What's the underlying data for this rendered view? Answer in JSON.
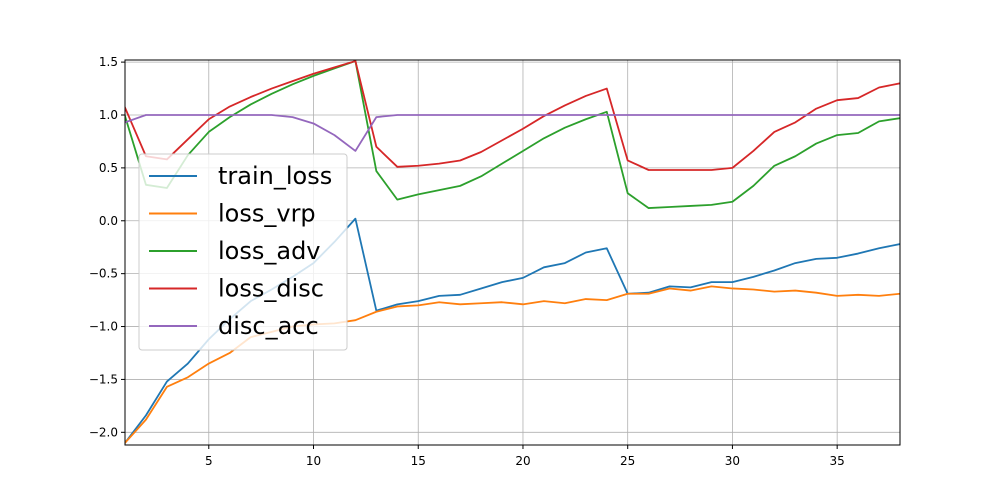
{
  "chart_data": {
    "type": "line",
    "title": "",
    "xlabel": "",
    "ylabel": "",
    "xlim": [
      1,
      38
    ],
    "ylim": [
      -2.12,
      1.52
    ],
    "grid": true,
    "legend_position": "center-left",
    "x_ticks": [
      5,
      10,
      15,
      20,
      25,
      30,
      35
    ],
    "x_tick_labels": [
      "5",
      "10",
      "15",
      "20",
      "25",
      "30",
      "35"
    ],
    "y_ticks": [
      -2.0,
      -1.5,
      -1.0,
      -0.5,
      0.0,
      0.5,
      1.0,
      1.5
    ],
    "y_tick_labels": [
      "−2.0",
      "−1.5",
      "−1.0",
      "−0.5",
      "0.0",
      "0.5",
      "1.0",
      "1.5"
    ],
    "x": [
      1,
      2,
      3,
      4,
      5,
      6,
      7,
      8,
      9,
      10,
      11,
      12,
      13,
      14,
      15,
      16,
      17,
      18,
      19,
      20,
      21,
      22,
      23,
      24,
      25,
      26,
      27,
      28,
      29,
      30,
      31,
      32,
      33,
      34,
      35,
      36,
      37,
      38
    ],
    "series": [
      {
        "name": "train_loss",
        "color": "#1f77b4",
        "values": [
          -2.1,
          -1.84,
          -1.52,
          -1.35,
          -1.12,
          -0.93,
          -0.76,
          -0.65,
          -0.53,
          -0.4,
          -0.2,
          0.02,
          -0.85,
          -0.79,
          -0.76,
          -0.71,
          -0.7,
          -0.64,
          -0.58,
          -0.54,
          -0.44,
          -0.4,
          -0.3,
          -0.26,
          -0.69,
          -0.68,
          -0.62,
          -0.63,
          -0.58,
          -0.58,
          -0.53,
          -0.47,
          -0.4,
          -0.36,
          -0.35,
          -0.31,
          -0.26,
          -0.22
        ]
      },
      {
        "name": "loss_vrp",
        "color": "#ff7f0e",
        "values": [
          -2.1,
          -1.88,
          -1.57,
          -1.48,
          -1.35,
          -1.25,
          -1.1,
          -1.05,
          -1.0,
          -0.98,
          -0.97,
          -0.94,
          -0.86,
          -0.81,
          -0.8,
          -0.77,
          -0.79,
          -0.78,
          -0.77,
          -0.79,
          -0.76,
          -0.78,
          -0.74,
          -0.75,
          -0.69,
          -0.69,
          -0.64,
          -0.66,
          -0.62,
          -0.64,
          -0.65,
          -0.67,
          -0.66,
          -0.68,
          -0.71,
          -0.7,
          -0.71,
          -0.69
        ]
      },
      {
        "name": "loss_adv",
        "color": "#2ca02c",
        "values": [
          0.99,
          0.34,
          0.31,
          0.62,
          0.84,
          0.98,
          1.1,
          1.2,
          1.29,
          1.37,
          1.44,
          1.51,
          0.47,
          0.2,
          0.25,
          0.29,
          0.33,
          0.42,
          0.54,
          0.66,
          0.78,
          0.88,
          0.96,
          1.03,
          0.26,
          0.12,
          0.13,
          0.14,
          0.15,
          0.18,
          0.33,
          0.52,
          0.61,
          0.73,
          0.81,
          0.83,
          0.94,
          0.97
        ]
      },
      {
        "name": "loss_disc",
        "color": "#d62728",
        "values": [
          1.07,
          0.61,
          0.58,
          0.77,
          0.96,
          1.08,
          1.17,
          1.25,
          1.32,
          1.39,
          1.45,
          1.51,
          0.7,
          0.51,
          0.52,
          0.54,
          0.57,
          0.65,
          0.76,
          0.87,
          0.99,
          1.09,
          1.18,
          1.25,
          0.57,
          0.48,
          0.48,
          0.48,
          0.48,
          0.5,
          0.66,
          0.84,
          0.93,
          1.06,
          1.14,
          1.16,
          1.26,
          1.3
        ]
      },
      {
        "name": "disc_acc",
        "color": "#9467bd",
        "values": [
          0.93,
          1.0,
          1.0,
          1.0,
          1.0,
          1.0,
          1.0,
          1.0,
          0.98,
          0.92,
          0.81,
          0.66,
          0.98,
          1.0,
          1.0,
          1.0,
          1.0,
          1.0,
          1.0,
          1.0,
          1.0,
          1.0,
          1.0,
          1.0,
          1.0,
          1.0,
          1.0,
          1.0,
          1.0,
          1.0,
          1.0,
          1.0,
          1.0,
          1.0,
          1.0,
          1.0,
          1.0,
          1.0
        ]
      }
    ]
  }
}
